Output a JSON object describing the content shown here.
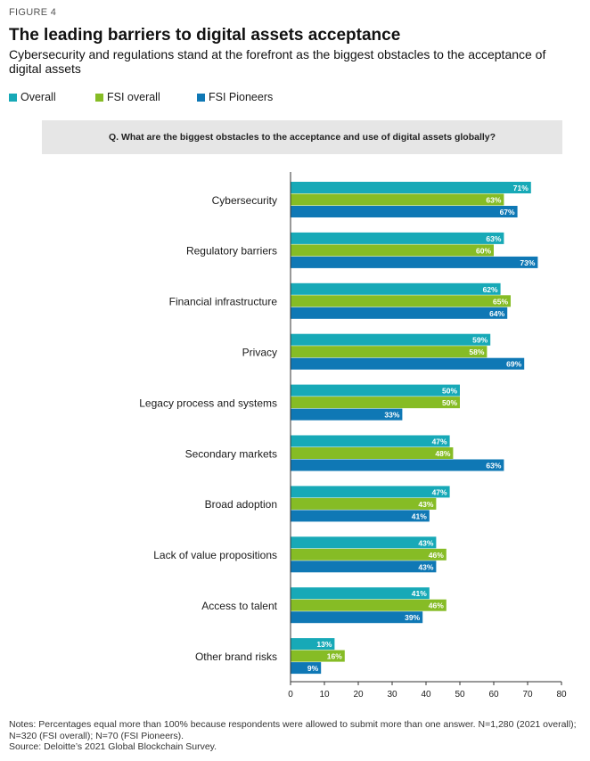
{
  "figure_label": "FIGURE 4",
  "title": "The leading barriers to digital assets acceptance",
  "subtitle": "Cybersecurity and regulations stand at the forefront as the biggest obstacles to the acceptance of digital assets",
  "question": "Q. What are the biggest obstacles to the acceptance and use of digital assets globally?",
  "notes": {
    "line1": "Notes: Percentages equal more than 100% because respondents were allowed to submit more than one answer. N=1,280 (2021 overall); N=320 (FSI overall); N=70 (FSI Pioneers).",
    "source": "Source: Deloitte’s 2021 Global Blockchain Survey."
  },
  "colors": {
    "overall": "#17a9b7",
    "fsi_overall": "#86bc25",
    "fsi_pioneers": "#0f78b5"
  },
  "chart_data": {
    "type": "bar",
    "orientation": "horizontal",
    "title": "The leading barriers to digital assets acceptance",
    "categories": [
      "Cybersecurity",
      "Regulatory barriers",
      "Financial infrastructure",
      "Privacy",
      "Legacy process and systems",
      "Secondary markets",
      "Broad adoption",
      "Lack of value propositions",
      "Access to talent",
      "Other brand risks"
    ],
    "series": [
      {
        "name": "Overall",
        "values": [
          71,
          63,
          62,
          59,
          50,
          47,
          47,
          43,
          41,
          13
        ]
      },
      {
        "name": "FSI overall",
        "values": [
          63,
          60,
          65,
          58,
          50,
          48,
          43,
          46,
          46,
          16
        ]
      },
      {
        "name": "FSI Pioneers",
        "values": [
          67,
          73,
          64,
          69,
          33,
          63,
          41,
          43,
          39,
          9
        ]
      }
    ],
    "value_labels": [
      [
        "71%",
        "63%",
        "62%",
        "59%",
        "50%",
        "47%",
        "47%",
        "43%",
        "41%",
        "13%"
      ],
      [
        "63%",
        "60%",
        "65%",
        "58%",
        "50%",
        "48%",
        "43%",
        "46%",
        "46%",
        "16%"
      ],
      [
        "67%",
        "73%",
        "64%",
        "69%",
        "33%",
        "63%",
        "41%",
        "43%",
        "39%",
        "9%"
      ]
    ],
    "xlim": [
      0,
      80
    ],
    "xticks": [
      "0",
      "10",
      "20",
      "30",
      "40",
      "50",
      "60",
      "70",
      "80"
    ],
    "legend_position": "top-left",
    "grid": false
  }
}
